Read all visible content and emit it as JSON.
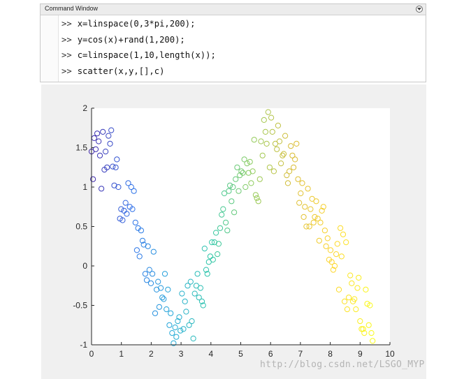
{
  "command_window": {
    "title": "Command Window",
    "prompt": ">>",
    "lines": [
      "x=linspace(0,3*pi,200);",
      "y=cos(x)+rand(1,200);",
      "c=linspace(1,10,length(x));",
      "scatter(x,y,[],c)"
    ],
    "menu_icon": "chevron-down-circle-icon"
  },
  "watermark": "http://blog.csdn.net/LSGO_MYP",
  "chart_data": {
    "type": "scatter",
    "title": "",
    "xlabel": "",
    "ylabel": "",
    "xlim": [
      0,
      10
    ],
    "ylim": [
      -1,
      2
    ],
    "xticks": [
      "0",
      "1",
      "2",
      "3",
      "4",
      "5",
      "6",
      "7",
      "8",
      "9",
      "10"
    ],
    "yticks": [
      "-1",
      "-0.5",
      "0",
      "0.5",
      "1",
      "1.5",
      "2"
    ],
    "marker": "open circle",
    "colormap": "parula",
    "color_stops": [
      "#3e26a8",
      "#2d6fe9",
      "#23a9d8",
      "#2bc6a4",
      "#91cc5c",
      "#d9bb32",
      "#fdd52b",
      "#f9fb15"
    ],
    "series": [
      {
        "x": [
          0.0,
          0.05,
          0.09,
          0.14,
          0.19,
          0.24,
          0.28,
          0.33,
          0.38,
          0.43,
          0.47,
          0.52,
          0.57,
          0.62,
          0.66,
          0.71,
          0.76,
          0.81,
          0.85,
          0.9,
          0.95,
          0.99,
          1.04,
          1.09,
          1.14,
          1.18,
          1.23,
          1.28,
          1.33,
          1.37,
          1.42,
          1.47,
          1.52,
          1.56,
          1.61,
          1.66,
          1.71,
          1.75,
          1.8,
          1.85,
          1.89,
          1.94,
          1.99,
          2.04,
          2.08,
          2.13,
          2.18,
          2.23,
          2.27,
          2.32,
          2.37,
          2.42,
          2.46,
          2.51,
          2.56,
          2.61,
          2.65,
          2.7,
          2.75,
          2.8,
          2.84,
          2.89,
          2.94,
          2.98,
          3.03,
          3.08,
          3.13,
          3.17,
          3.22,
          3.27,
          3.32,
          3.36,
          3.41,
          3.46,
          3.51,
          3.55,
          3.6,
          3.65,
          3.7,
          3.74,
          3.79,
          3.84,
          3.88,
          3.93,
          3.98,
          4.03,
          4.07,
          4.12,
          4.17,
          4.22,
          4.26,
          4.31,
          4.36,
          4.41,
          4.45,
          4.5,
          4.55,
          4.6,
          4.64,
          4.69,
          4.74,
          4.78,
          4.83,
          4.88,
          4.93,
          4.97,
          5.02,
          5.07,
          5.12,
          5.16,
          5.21,
          5.26,
          5.31,
          5.35,
          5.4,
          5.45,
          5.5,
          5.54,
          5.59,
          5.64,
          5.68,
          5.73,
          5.78,
          5.83,
          5.87,
          5.92,
          5.97,
          6.02,
          6.06,
          6.11,
          6.16,
          6.21,
          6.25,
          6.3,
          6.35,
          6.4,
          6.44,
          6.49,
          6.54,
          6.58,
          6.63,
          6.68,
          6.73,
          6.77,
          6.82,
          6.87,
          6.92,
          6.96,
          7.01,
          7.06,
          7.11,
          7.15,
          7.2,
          7.25,
          7.3,
          7.34,
          7.39,
          7.44,
          7.48,
          7.53,
          7.58,
          7.63,
          7.67,
          7.72,
          7.77,
          7.82,
          7.86,
          7.91,
          7.96,
          8.01,
          8.05,
          8.1,
          8.15,
          8.2,
          8.24,
          8.29,
          8.34,
          8.38,
          8.43,
          8.48,
          8.53,
          8.57,
          8.62,
          8.67,
          8.72,
          8.76,
          8.81,
          8.86,
          8.91,
          8.95,
          9.0,
          9.05,
          9.1,
          9.14,
          9.19,
          9.24,
          9.29,
          9.33,
          9.38,
          9.42
        ],
        "y": [
          1.45,
          1.1,
          1.62,
          1.48,
          1.68,
          1.58,
          1.4,
          0.98,
          1.7,
          1.22,
          1.45,
          1.25,
          1.65,
          1.55,
          1.72,
          1.26,
          1.02,
          1.25,
          1.35,
          1.0,
          0.6,
          0.72,
          0.58,
          0.7,
          0.8,
          0.66,
          1.05,
          0.75,
          1.0,
          0.72,
          0.95,
          0.55,
          0.2,
          0.48,
          0.12,
          0.45,
          0.32,
          0.27,
          -0.1,
          -0.18,
          0.25,
          -0.05,
          -0.22,
          -0.1,
          0.18,
          -0.6,
          -0.3,
          -0.2,
          -0.52,
          -0.28,
          -0.4,
          -0.42,
          -0.1,
          -0.55,
          -0.3,
          -0.75,
          -0.6,
          -0.85,
          -0.98,
          -0.78,
          -0.9,
          -0.7,
          -0.65,
          -0.82,
          -0.35,
          -0.8,
          -0.45,
          -0.58,
          -0.25,
          -0.75,
          -0.2,
          -0.7,
          -0.92,
          -0.35,
          -0.25,
          -0.1,
          -0.4,
          -0.28,
          -0.45,
          -0.5,
          0.22,
          -0.05,
          -0.1,
          0.05,
          0.12,
          0.3,
          0.08,
          0.3,
          0.42,
          0.15,
          0.28,
          0.48,
          0.65,
          0.72,
          0.92,
          0.55,
          0.45,
          0.95,
          1.02,
          0.82,
          1.0,
          0.68,
          1.1,
          1.25,
          0.95,
          1.15,
          1.2,
          1.18,
          1.35,
          1.0,
          1.3,
          1.18,
          1.32,
          1.05,
          1.2,
          1.6,
          0.9,
          0.86,
          0.82,
          1.1,
          1.58,
          1.4,
          1.85,
          1.7,
          1.55,
          1.95,
          1.25,
          1.88,
          1.7,
          1.2,
          1.55,
          1.48,
          1.78,
          1.58,
          1.3,
          1.4,
          1.42,
          1.65,
          1.15,
          1.05,
          1.2,
          1.52,
          1.4,
          1.25,
          1.35,
          1.55,
          1.1,
          0.8,
          0.92,
          1.05,
          0.62,
          0.75,
          0.5,
          0.98,
          0.5,
          0.72,
          0.85,
          0.55,
          0.62,
          0.82,
          0.6,
          0.32,
          0.55,
          0.7,
          0.75,
          0.45,
          0.25,
          0.35,
          0.08,
          0.2,
          0.05,
          -0.05,
          0.0,
          0.15,
          0.28,
          -0.3,
          0.48,
          0.12,
          0.4,
          -0.45,
          0.3,
          -0.55,
          -0.4,
          -0.12,
          -0.22,
          -0.45,
          -0.42,
          -0.55,
          -0.28,
          -0.15,
          -0.7,
          -0.8,
          -0.8,
          -0.85,
          -0.3,
          -0.48,
          -0.75,
          -0.5,
          -0.85,
          -0.95
        ]
      }
    ]
  }
}
